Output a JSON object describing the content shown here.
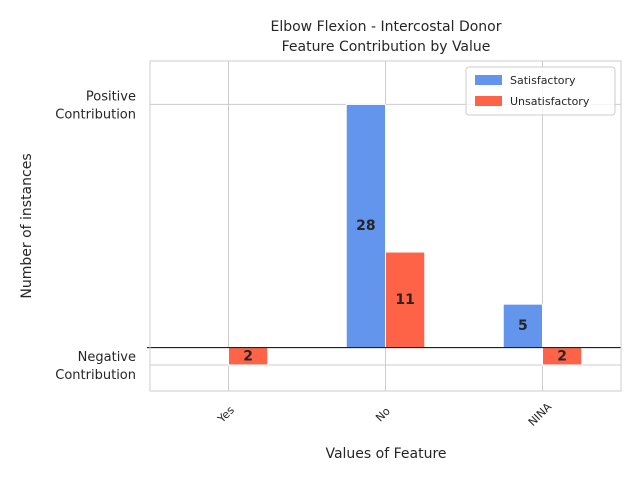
{
  "chart_data": {
    "type": "bar",
    "title_lines": [
      "Elbow Flexion - Intercostal Donor",
      "Feature Contribution by Value"
    ],
    "xlabel": "Values of Feature",
    "ylabel": "Number of instances",
    "categories": [
      "Yes",
      "No",
      "NINA"
    ],
    "series": [
      {
        "name": "Satisfactory",
        "color": "#6495ED",
        "values": [
          0,
          28,
          5
        ]
      },
      {
        "name": "Unsatisfactory",
        "color": "#FF6347",
        "values": [
          -2,
          11,
          -2
        ]
      }
    ],
    "data_labels": [
      {
        "category": "Yes",
        "series": "Unsatisfactory",
        "text": "2",
        "value": -2
      },
      {
        "category": "No",
        "series": "Satisfactory",
        "text": "28",
        "value": 28
      },
      {
        "category": "No",
        "series": "Unsatisfactory",
        "text": "11",
        "value": 11
      },
      {
        "category": "NINA",
        "series": "Satisfactory",
        "text": "5",
        "value": 5
      },
      {
        "category": "NINA",
        "series": "Unsatisfactory",
        "text": "2",
        "value": -2
      }
    ],
    "yticks": [
      {
        "value": 28,
        "lines": [
          "Positive",
          "Contribution"
        ]
      },
      {
        "value": -2,
        "lines": [
          "Negative",
          "Contribution"
        ]
      }
    ],
    "zero_line": 0,
    "ylim": [
      -5,
      33
    ],
    "legend": {
      "placement": "upper right"
    },
    "grid": true,
    "xtick_rotation": 45
  }
}
